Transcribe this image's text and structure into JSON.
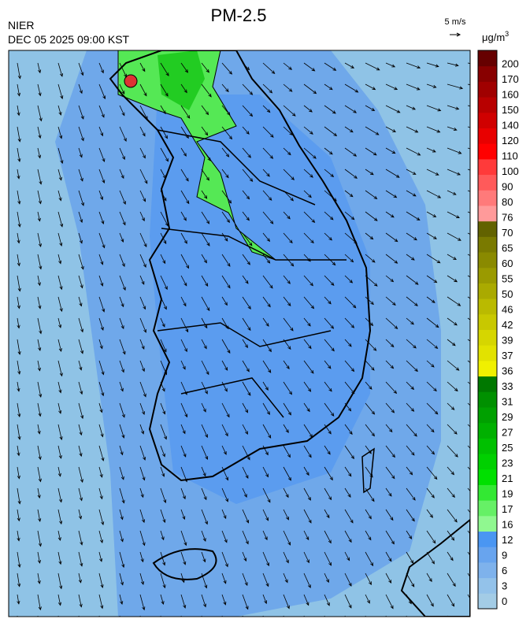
{
  "header": {
    "title": "PM-2.5",
    "source": "NIER",
    "timestamp": "DEC 05 2025 09:00 KST"
  },
  "wind_scale": {
    "label": "5 m/s"
  },
  "legend": {
    "unit_base": "μg/m",
    "unit_exp": "3",
    "entries": [
      {
        "label": "0",
        "color": "#a3cce6"
      },
      {
        "label": "3",
        "color": "#93c2ea"
      },
      {
        "label": "6",
        "color": "#7eb2ec"
      },
      {
        "label": "9",
        "color": "#68a4ee"
      },
      {
        "label": "12",
        "color": "#4a96f2"
      },
      {
        "label": "16",
        "color": "#90f890"
      },
      {
        "label": "17",
        "color": "#66f066"
      },
      {
        "label": "19",
        "color": "#33e833"
      },
      {
        "label": "21",
        "color": "#00e000"
      },
      {
        "label": "23",
        "color": "#00d000"
      },
      {
        "label": "25",
        "color": "#00c000"
      },
      {
        "label": "27",
        "color": "#00b000"
      },
      {
        "label": "29",
        "color": "#00a000"
      },
      {
        "label": "31",
        "color": "#009000"
      },
      {
        "label": "33",
        "color": "#007800"
      },
      {
        "label": "36",
        "color": "#f0f000"
      },
      {
        "label": "37",
        "color": "#e2e200"
      },
      {
        "label": "39",
        "color": "#d6d600"
      },
      {
        "label": "42",
        "color": "#c8c800"
      },
      {
        "label": "46",
        "color": "#baba00"
      },
      {
        "label": "50",
        "color": "#aaaa00"
      },
      {
        "label": "55",
        "color": "#9a9a00"
      },
      {
        "label": "60",
        "color": "#8a8a00"
      },
      {
        "label": "65",
        "color": "#7a7a00"
      },
      {
        "label": "70",
        "color": "#626200"
      },
      {
        "label": "76",
        "color": "#ff9a9a"
      },
      {
        "label": "80",
        "color": "#ff7a7a"
      },
      {
        "label": "90",
        "color": "#ff5a5a"
      },
      {
        "label": "100",
        "color": "#ff3a3a"
      },
      {
        "label": "110",
        "color": "#ff0000"
      },
      {
        "label": "120",
        "color": "#e80000"
      },
      {
        "label": "140",
        "color": "#d00000"
      },
      {
        "label": "150",
        "color": "#b80000"
      },
      {
        "label": "160",
        "color": "#a00000"
      },
      {
        "label": "170",
        "color": "#880000"
      },
      {
        "label": "200",
        "color": "#660000"
      }
    ]
  }
}
